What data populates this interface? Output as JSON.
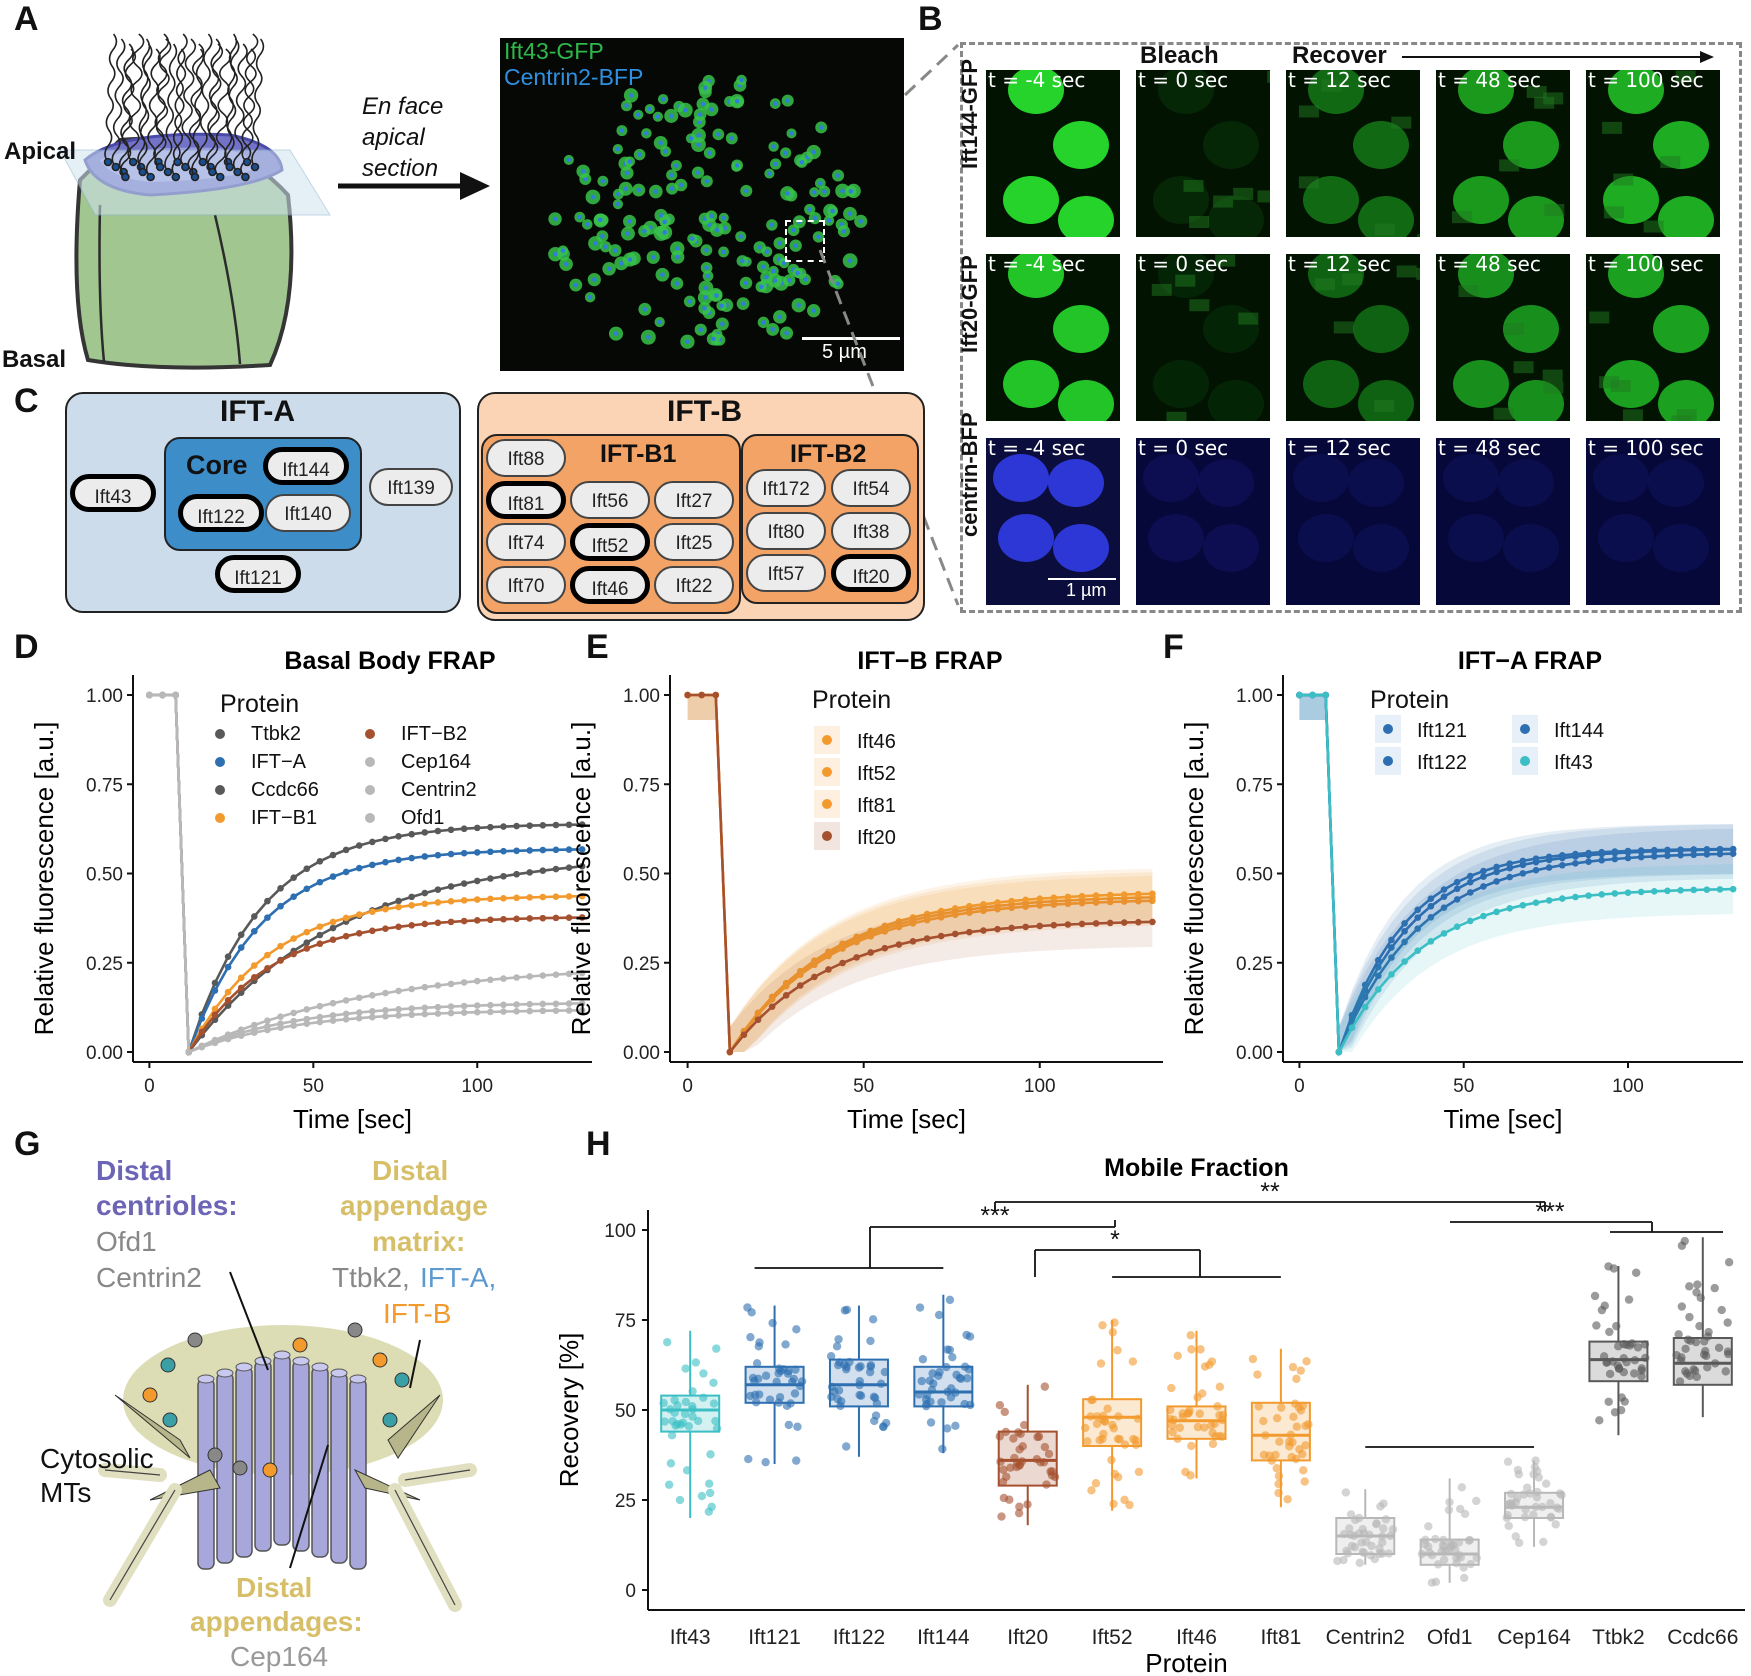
{
  "panel_labels": {
    "A": "A",
    "B": "B",
    "C": "C",
    "D": "D",
    "E": "E",
    "F": "F",
    "G": "G",
    "H": "H"
  },
  "panel_a": {
    "apical": "Apical",
    "basal": "Basal",
    "arrow_text": [
      "En face",
      "apical",
      "section"
    ],
    "legend": [
      "Ift43-GFP",
      "Centrin2-BFP"
    ],
    "legend_colors": [
      "#2fb84a",
      "#2f8fe0"
    ],
    "scale_bar": "5 µm"
  },
  "panel_b": {
    "bleach": "Bleach",
    "recover": "Recover",
    "rows": [
      "Ift144-GFP",
      "Ift20-GFP",
      "centrin-BFP"
    ],
    "times": [
      "t = -4 sec",
      "t = 0 sec",
      "t = 12 sec",
      "t = 48 sec",
      "t = 100 sec"
    ],
    "scale_bar": "1 µm"
  },
  "panel_c": {
    "ifta_title": "IFT-A",
    "core": "Core",
    "ifta_members": [
      "Ift43",
      "Ift144",
      "Ift122",
      "Ift140",
      "Ift139",
      "Ift121"
    ],
    "iftb_title": "IFT-B",
    "b1": "IFT-B1",
    "b2": "IFT-B2",
    "b1_members": [
      "Ift88",
      "Ift81",
      "Ift56",
      "Ift27",
      "Ift74",
      "Ift52",
      "Ift25",
      "Ift70",
      "Ift46",
      "Ift22"
    ],
    "b2_members": [
      "Ift172",
      "Ift54",
      "Ift80",
      "Ift38",
      "Ift57",
      "Ift20"
    ]
  },
  "frap_axes": {
    "xlabel": "Time [sec]",
    "ylabel": "Relative fluorescence [a.u.]",
    "xticks": [
      "0",
      "50",
      "100"
    ],
    "yticks": [
      "0.00",
      "0.25",
      "0.50",
      "0.75",
      "1.00"
    ]
  },
  "panel_d": {
    "title": "Basal Body FRAP",
    "legend_title": "Protein",
    "legend": [
      "Ttbk2",
      "IFT−A",
      "Ccdc66",
      "IFT−B1",
      "IFT−B2",
      "Cep164",
      "Centrin2",
      "Ofd1"
    ]
  },
  "panel_e": {
    "title": "IFT−B FRAP",
    "legend_title": "Protein",
    "legend": [
      "Ift46",
      "Ift52",
      "Ift81",
      "Ift20"
    ]
  },
  "panel_f": {
    "title": "IFT−A FRAP",
    "legend_title": "Protein",
    "legend": [
      "Ift121",
      "Ift144",
      "Ift122",
      "Ift43"
    ]
  },
  "panel_g": {
    "distal_centrioles": [
      "Distal",
      "centrioles:"
    ],
    "centriole_members": [
      "Ofd1",
      "Centrin2"
    ],
    "matrix": [
      "Distal",
      "appendage",
      "matrix:"
    ],
    "matrix_members": [
      "Ttbk2,",
      "IFT-A,",
      "IFT-B"
    ],
    "cytosolic": [
      "Cytosolic",
      "MTs"
    ],
    "appendages": [
      "Distal",
      "appendages:"
    ],
    "appendage_member": "Cep164"
  },
  "panel_h": {
    "title": "Mobile Fraction",
    "xlabel": "Protein",
    "ylabel": "Recovery [%]",
    "yticks": [
      "0",
      "25",
      "50",
      "75",
      "100"
    ],
    "sig": [
      "***",
      "*",
      "**",
      "***"
    ]
  },
  "chart_data": [
    {
      "type": "line",
      "title": "Basal Body FRAP",
      "xlabel": "Time [sec]",
      "ylabel": "Relative fluorescence [a.u.]",
      "xlim": [
        -5,
        135
      ],
      "ylim": [
        0,
        1
      ],
      "legend_position": "top-right",
      "bleach_time": 12,
      "pre_bleach": 1.0,
      "series": [
        {
          "name": "Ttbk2",
          "color": "#595959",
          "plateau": 0.64,
          "rate": 0.045
        },
        {
          "name": "IFT−A",
          "color": "#2d6fb0",
          "plateau": 0.57,
          "rate": 0.045
        },
        {
          "name": "Ccdc66",
          "color": "#595959",
          "plateau": 0.56,
          "rate": 0.022
        },
        {
          "name": "IFT−B1",
          "color": "#f29a2e",
          "plateau": 0.44,
          "rate": 0.04
        },
        {
          "name": "IFT−B2",
          "color": "#a5502f",
          "plateau": 0.38,
          "rate": 0.04
        },
        {
          "name": "Cep164",
          "color": "#b8b8b8",
          "plateau": 0.25,
          "rate": 0.018
        },
        {
          "name": "Centrin2",
          "color": "#b8b8b8",
          "plateau": 0.14,
          "rate": 0.03
        },
        {
          "name": "Ofd1",
          "color": "#b8b8b8",
          "plateau": 0.12,
          "rate": 0.03
        }
      ]
    },
    {
      "type": "line",
      "title": "IFT−B FRAP",
      "xlabel": "Time [sec]",
      "ylabel": "Relative fluorescence [a.u.]",
      "xlim": [
        -5,
        135
      ],
      "ylim": [
        0,
        1
      ],
      "bleach_time": 12,
      "pre_bleach": 1.0,
      "series": [
        {
          "name": "Ift46",
          "color": "#f29a2e",
          "plateau": 0.45,
          "rate": 0.035
        },
        {
          "name": "Ift52",
          "color": "#f29a2e",
          "plateau": 0.44,
          "rate": 0.035
        },
        {
          "name": "Ift81",
          "color": "#f29a2e",
          "plateau": 0.43,
          "rate": 0.035
        },
        {
          "name": "Ift20",
          "color": "#a5502f",
          "plateau": 0.37,
          "rate": 0.035
        }
      ]
    },
    {
      "type": "line",
      "title": "IFT−A FRAP",
      "xlabel": "Time [sec]",
      "ylabel": "Relative fluorescence [a.u.]",
      "xlim": [
        -5,
        135
      ],
      "ylim": [
        0,
        1
      ],
      "bleach_time": 12,
      "pre_bleach": 1.0,
      "series": [
        {
          "name": "Ift121",
          "color": "#2d6fb0",
          "plateau": 0.57,
          "rate": 0.045
        },
        {
          "name": "Ift144",
          "color": "#2d6fb0",
          "plateau": 0.56,
          "rate": 0.04
        },
        {
          "name": "Ift122",
          "color": "#2d6fb0",
          "plateau": 0.57,
          "rate": 0.05
        },
        {
          "name": "Ift43",
          "color": "#3bbfc4",
          "plateau": 0.46,
          "rate": 0.04
        }
      ]
    },
    {
      "type": "box",
      "title": "Mobile Fraction",
      "xlabel": "Protein",
      "ylabel": "Recovery [%]",
      "ylim": [
        0,
        100
      ],
      "categories": [
        "Ift43",
        "Ift121",
        "Ift122",
        "Ift144",
        "Ift20",
        "Ift52",
        "Ift46",
        "Ift81",
        "Centrin2",
        "Ofd1",
        "Cep164",
        "Ttbk2",
        "Ccdc66"
      ],
      "boxes": [
        {
          "name": "Ift43",
          "color": "#3bbfc4",
          "q1": 44,
          "median": 50,
          "q3": 54,
          "min": 20,
          "max": 72
        },
        {
          "name": "Ift121",
          "color": "#2d6fb0",
          "q1": 52,
          "median": 57,
          "q3": 62,
          "min": 35,
          "max": 79
        },
        {
          "name": "Ift122",
          "color": "#2d6fb0",
          "q1": 51,
          "median": 57,
          "q3": 64,
          "min": 37,
          "max": 79
        },
        {
          "name": "Ift144",
          "color": "#2d6fb0",
          "q1": 51,
          "median": 55,
          "q3": 62,
          "min": 38,
          "max": 82
        },
        {
          "name": "Ift20",
          "color": "#a5502f",
          "q1": 29,
          "median": 36,
          "q3": 44,
          "min": 18,
          "max": 57
        },
        {
          "name": "Ift52",
          "color": "#f29a2e",
          "q1": 40,
          "median": 48,
          "q3": 53,
          "min": 22,
          "max": 75
        },
        {
          "name": "Ift46",
          "color": "#f29a2e",
          "q1": 42,
          "median": 47,
          "q3": 51,
          "min": 31,
          "max": 72
        },
        {
          "name": "Ift81",
          "color": "#f29a2e",
          "q1": 36,
          "median": 43,
          "q3": 52,
          "min": 23,
          "max": 67
        },
        {
          "name": "Centrin2",
          "color": "#b8b8b8",
          "q1": 10,
          "median": 15,
          "q3": 20,
          "min": 7,
          "max": 28
        },
        {
          "name": "Ofd1",
          "color": "#b8b8b8",
          "q1": 7,
          "median": 10,
          "q3": 14,
          "min": 2,
          "max": 31
        },
        {
          "name": "Cep164",
          "color": "#b8b8b8",
          "q1": 20,
          "median": 23,
          "q3": 27,
          "min": 12,
          "max": 36
        },
        {
          "name": "Ttbk2",
          "color": "#595959",
          "q1": 58,
          "median": 64,
          "q3": 69,
          "min": 43,
          "max": 90
        },
        {
          "name": "Ccdc66",
          "color": "#595959",
          "q1": 57,
          "median": 63,
          "q3": 70,
          "min": 48,
          "max": 98
        }
      ],
      "significance": [
        {
          "label": "***",
          "compare": [
            "IFT-A",
            "IFT-B"
          ]
        },
        {
          "label": "*",
          "compare": [
            "Ift20",
            "Ift52/Ift46/Ift81"
          ]
        },
        {
          "label": "**",
          "compare": [
            "IFT-A",
            "Ttbk2/Ccdc66"
          ]
        },
        {
          "label": "***",
          "compare": [
            "Centrin2/Ofd1/Cep164",
            "Ttbk2/Ccdc66"
          ]
        }
      ]
    }
  ]
}
